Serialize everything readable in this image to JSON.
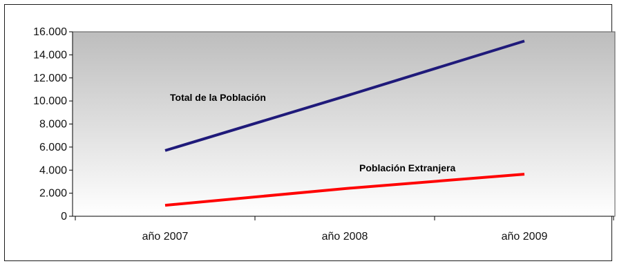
{
  "chart_data": {
    "type": "line",
    "categories": [
      "año 2007",
      "año 2008",
      "año 2009"
    ],
    "series": [
      {
        "name": "Total de la Población",
        "values": [
          5700,
          10400,
          15200
        ],
        "color": "#1f1a7a"
      },
      {
        "name": "Población Extranjera",
        "values": [
          950,
          2400,
          3650
        ],
        "color": "#ff0000"
      }
    ],
    "ylim": [
      0,
      16000
    ],
    "yticks": [
      0,
      2000,
      4000,
      6000,
      8000,
      10000,
      12000,
      14000,
      16000
    ],
    "ytick_labels": [
      "0",
      "2.000",
      "4.000",
      "6.000",
      "8.000",
      "10.000",
      "12.000",
      "14.000",
      "16.000"
    ],
    "grid": false,
    "legend": "inline labels",
    "plot_background": [
      "#bdbdbd",
      "#ffffff"
    ]
  }
}
